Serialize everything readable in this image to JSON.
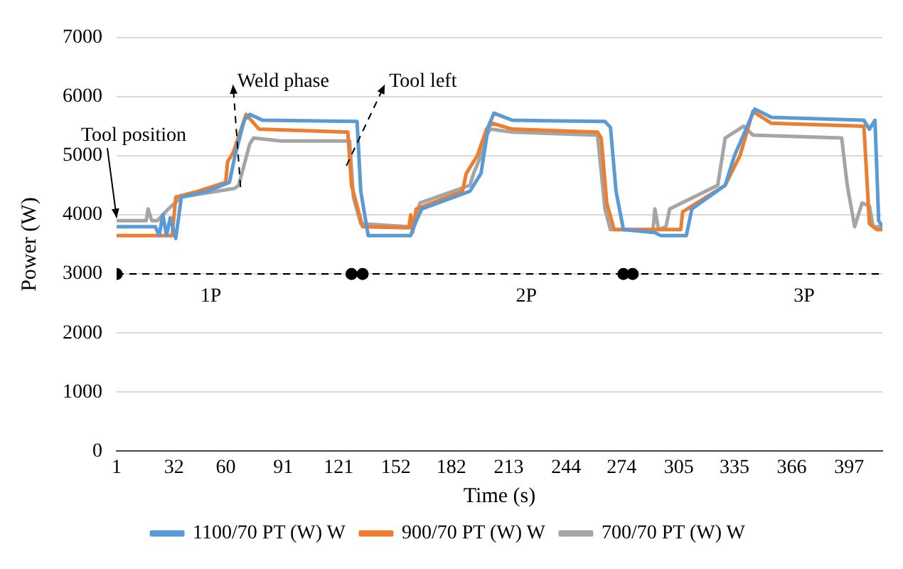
{
  "chart_data": {
    "type": "line",
    "xlabel": "Time (s)",
    "ylabel": "Power (W)",
    "xlim": [
      1,
      415
    ],
    "xticks": [
      1,
      32,
      60,
      91,
      121,
      152,
      182,
      213,
      244,
      274,
      305,
      335,
      366,
      397
    ],
    "ylim": [
      0,
      7000
    ],
    "yticks": [
      0,
      1000,
      2000,
      3000,
      4000,
      5000,
      6000,
      7000
    ],
    "grid": "y",
    "legend": "bottom",
    "marker": "none",
    "line_style": "solid",
    "ref_lines": [
      {
        "axis": "y",
        "value": 3000,
        "label": null,
        "color": "#000000",
        "line_style": "dashed"
      }
    ],
    "annotations": [
      {
        "text": "Tool position",
        "x": 1,
        "y": 3950
      },
      {
        "text": "Weld phase",
        "x": 68,
        "y": 4470
      },
      "Tool left",
      "1P",
      "2P",
      "3P"
    ],
    "series": [
      {
        "name": "1100/70 PT (W) W",
        "color": "#5b9bd5",
        "x": [
          1,
          22,
          24,
          26,
          28,
          30,
          33,
          36,
          50,
          62,
          65,
          70,
          73,
          80,
          131,
          133,
          137,
          160,
          163,
          166,
          192,
          198,
          202,
          205,
          215,
          265,
          268,
          271,
          275,
          292,
          295,
          309,
          312,
          330,
          335,
          346,
          355,
          405,
          408,
          411,
          413,
          415
        ],
        "values": [
          3800,
          3800,
          3650,
          4000,
          3650,
          3950,
          3600,
          4300,
          4400,
          4550,
          5000,
          5600,
          5700,
          5600,
          5580,
          4400,
          3650,
          3650,
          3900,
          4100,
          4400,
          4700,
          5500,
          5720,
          5600,
          5580,
          5480,
          4400,
          3750,
          3700,
          3650,
          3650,
          4100,
          4500,
          5000,
          5790,
          5650,
          5600,
          5450,
          5600,
          3900,
          3800
        ]
      },
      {
        "name": "900/70 PT (W) W",
        "color": "#ed7d31",
        "x": [
          1,
          31,
          33,
          45,
          60,
          61,
          64,
          71,
          78,
          126,
          128,
          134,
          159,
          160,
          161,
          163,
          188,
          190,
          196,
          201,
          204,
          215,
          261,
          263,
          266,
          270,
          306,
          307,
          330,
          338,
          345,
          355,
          405,
          408,
          412,
          415
        ],
        "values": [
          3650,
          3650,
          4300,
          4400,
          4550,
          4900,
          5050,
          5700,
          5450,
          5400,
          4500,
          3800,
          3780,
          4000,
          3700,
          4100,
          4400,
          4700,
          5000,
          5450,
          5550,
          5450,
          5400,
          5300,
          4200,
          3750,
          3750,
          4050,
          4500,
          5000,
          5750,
          5550,
          5500,
          3850,
          3750,
          3750
        ]
      },
      {
        "name": "700/70 PT (W) W",
        "color": "#a5a5a5",
        "x": [
          1,
          17,
          18,
          20,
          23,
          26,
          29,
          36,
          65,
          67,
          73,
          75,
          90,
          127,
          129,
          133,
          159,
          163,
          165,
          192,
          194,
          198,
          201,
          203,
          215,
          261,
          265,
          268,
          291,
          292,
          294,
          298,
          300,
          326,
          330,
          340,
          345,
          393,
          396,
          400,
          404,
          408,
          410,
          415
        ],
        "values": [
          3900,
          3900,
          4100,
          3900,
          3900,
          4000,
          4100,
          4300,
          4450,
          4500,
          5200,
          5300,
          5250,
          5250,
          4300,
          3850,
          3800,
          4000,
          4200,
          4500,
          4700,
          5000,
          5350,
          5450,
          5400,
          5350,
          4100,
          3750,
          3750,
          4100,
          3750,
          3800,
          4100,
          4500,
          5300,
          5500,
          5350,
          5300,
          4500,
          3800,
          4200,
          4150,
          3800,
          3800
        ]
      },
      {
        "type": "scatter",
        "color": "#000000",
        "marker": "circle",
        "x": [
          1,
          128,
          134,
          275,
          280
        ],
        "values": [
          3000,
          3000,
          3000,
          3000,
          3000
        ]
      }
    ]
  }
}
